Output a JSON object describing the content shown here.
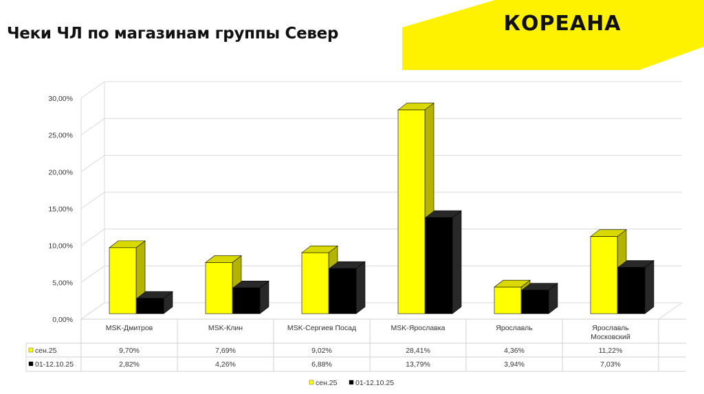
{
  "header": {
    "title": "Чеки ЧЛ по магазинам группы Север",
    "logo_text": "КОРЕАНА",
    "accent_color": "#FFF200"
  },
  "chart_data": {
    "type": "bar",
    "categories": [
      "MSK-Дмитров",
      "MSK-Клин",
      "MSK-Сергиев Посад",
      "MSK-Ярославка",
      "Ярославль",
      "Ярославль Московский"
    ],
    "series": [
      {
        "name": "сен.25",
        "values": [
          9.7,
          7.69,
          9.02,
          28.41,
          4.36,
          11.22
        ],
        "labels": [
          "9,70%",
          "7,69%",
          "9,02%",
          "28,41%",
          "4,36%",
          "11,22%"
        ],
        "color": "#FFFF00"
      },
      {
        "name": "01-12.10.25",
        "values": [
          2.82,
          4.26,
          6.88,
          13.79,
          3.94,
          7.03
        ],
        "labels": [
          "2,82%",
          "4,26%",
          "6,88%",
          "13,79%",
          "3,94%",
          "7,03%"
        ],
        "color": "#000000"
      }
    ],
    "yticks": [
      "0,00%",
      "5,00%",
      "10,00%",
      "15,00%",
      "20,00%",
      "25,00%",
      "30,00%"
    ],
    "ylim": [
      0,
      30
    ],
    "grid": true,
    "legend": "bottom-center",
    "data_table": true
  }
}
